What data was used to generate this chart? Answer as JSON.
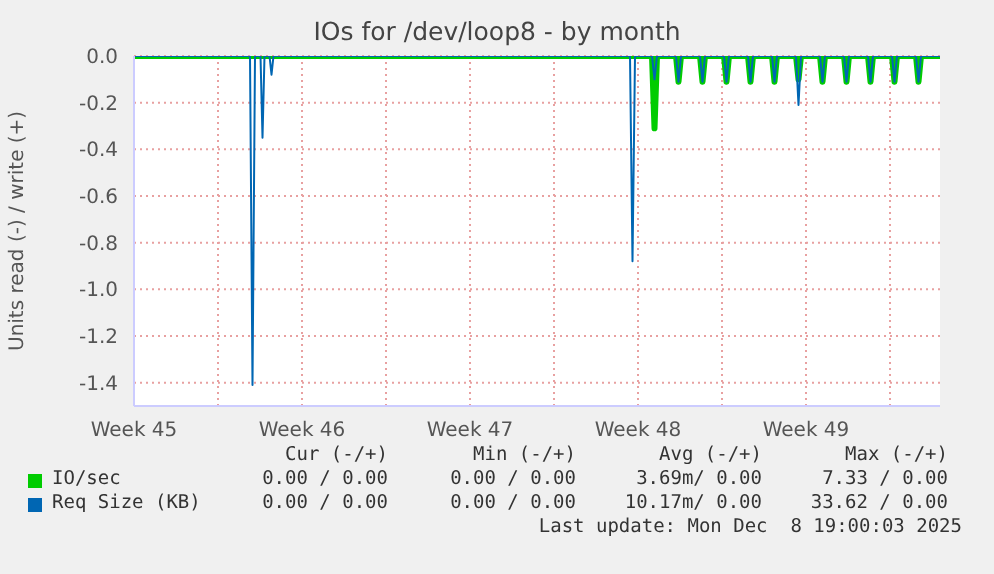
{
  "chart_data": {
    "type": "line",
    "title": "IOs for /dev/loop8 - by month",
    "ylabel": "Units read (-) / write (+)",
    "xlim": [
      "2025-11-06T12:00",
      "2025-12-10T02:00"
    ],
    "xticks": [
      {
        "value": "2025-11-06T12:00",
        "label": "Week 45"
      },
      {
        "value": "2025-11-10T00:00",
        "label": null
      },
      {
        "value": "2025-11-13T12:00",
        "label": "Week 46"
      },
      {
        "value": "2025-11-17T00:00",
        "label": null
      },
      {
        "value": "2025-11-20T12:00",
        "label": "Week 47"
      },
      {
        "value": "2025-11-24T00:00",
        "label": null
      },
      {
        "value": "2025-11-27T12:00",
        "label": "Week 48"
      },
      {
        "value": "2025-12-01T00:00",
        "label": null
      },
      {
        "value": "2025-12-04T12:00",
        "label": "Week 49"
      },
      {
        "value": "2025-12-08T00:00",
        "label": null
      }
    ],
    "ylim": [
      -1.5,
      0
    ],
    "yticks": [
      {
        "value": -1.4,
        "label": "-1.4"
      },
      {
        "value": -1.2,
        "label": "-1.2"
      },
      {
        "value": -1.0,
        "label": "-1.0"
      },
      {
        "value": -0.8,
        "label": "-0.8"
      },
      {
        "value": -0.6,
        "label": "-0.6"
      },
      {
        "value": -0.4,
        "label": "-0.4"
      },
      {
        "value": -0.2,
        "label": "-0.2"
      },
      {
        "value": 0,
        "label": "0.0"
      }
    ],
    "grid": true,
    "legend": "bottom",
    "series": [
      {
        "name": "IO/sec",
        "color": "#00cc00",
        "x": [
          "2025-11-06T12:00",
          "2025-11-28T02:00",
          "2025-11-28T04:30",
          "2025-11-28T07:00",
          "2025-11-29T02:00",
          "2025-11-29T04:30",
          "2025-11-29T07:00",
          "2025-11-30T02:00",
          "2025-11-30T04:30",
          "2025-11-30T07:00",
          "2025-12-01T02:00",
          "2025-12-01T04:30",
          "2025-12-01T07:00",
          "2025-12-02T02:00",
          "2025-12-02T04:30",
          "2025-12-02T07:00",
          "2025-12-03T02:00",
          "2025-12-03T04:30",
          "2025-12-03T07:00",
          "2025-12-04T02:00",
          "2025-12-04T04:30",
          "2025-12-04T07:00",
          "2025-12-05T02:00",
          "2025-12-05T04:30",
          "2025-12-05T07:00",
          "2025-12-06T02:00",
          "2025-12-06T04:30",
          "2025-12-06T07:00",
          "2025-12-07T02:00",
          "2025-12-07T04:30",
          "2025-12-07T07:00",
          "2025-12-08T02:00",
          "2025-12-08T04:30",
          "2025-12-08T07:00",
          "2025-12-09T02:00",
          "2025-12-09T04:30",
          "2025-12-09T07:00",
          "2025-12-10T02:00"
        ],
        "values": [
          0,
          0,
          -0.31,
          0,
          0,
          -0.11,
          0,
          0,
          -0.11,
          0,
          0,
          -0.11,
          0,
          0,
          -0.11,
          0,
          0,
          -0.11,
          0,
          0,
          -0.1,
          0,
          0,
          -0.11,
          0,
          0,
          -0.11,
          0,
          0,
          -0.11,
          0,
          0,
          -0.11,
          0,
          0,
          -0.11,
          0,
          0
        ]
      },
      {
        "name": "Req Size (KB)",
        "color": "#0066b3",
        "x": [
          "2025-11-06T12:00",
          "2025-11-11T08:00",
          "2025-11-11T10:30",
          "2025-11-11T13:00",
          "2025-11-11T18:30",
          "2025-11-11T20:30",
          "2025-11-11T22:30",
          "2025-11-12T03:30",
          "2025-11-12T05:30",
          "2025-11-12T07:30",
          "2025-11-27T04:00",
          "2025-11-27T06:30",
          "2025-11-27T09:00",
          "2025-11-28T02:00",
          "2025-11-28T04:30",
          "2025-11-28T07:00",
          "2025-11-29T02:00",
          "2025-11-29T04:30",
          "2025-11-29T07:00",
          "2025-11-30T02:00",
          "2025-11-30T04:30",
          "2025-11-30T07:00",
          "2025-12-01T02:00",
          "2025-12-01T04:30",
          "2025-12-01T07:00",
          "2025-12-02T02:00",
          "2025-12-02T04:30",
          "2025-12-02T07:00",
          "2025-12-03T02:00",
          "2025-12-03T04:30",
          "2025-12-03T07:00",
          "2025-12-04T02:00",
          "2025-12-04T04:30",
          "2025-12-04T07:00",
          "2025-12-05T02:00",
          "2025-12-05T04:30",
          "2025-12-05T07:00",
          "2025-12-06T02:00",
          "2025-12-06T04:30",
          "2025-12-06T07:00",
          "2025-12-07T02:00",
          "2025-12-07T04:30",
          "2025-12-07T07:00",
          "2025-12-08T02:00",
          "2025-12-08T04:30",
          "2025-12-08T07:00",
          "2025-12-09T02:00",
          "2025-12-09T04:30",
          "2025-12-09T07:00",
          "2025-12-10T02:00"
        ],
        "values": [
          0,
          0,
          -1.41,
          0,
          0,
          -0.35,
          0,
          0,
          -0.08,
          0,
          0,
          -0.88,
          0,
          0,
          -0.1,
          0,
          0,
          -0.11,
          0,
          0,
          -0.11,
          0,
          0,
          -0.11,
          0,
          0,
          -0.11,
          0,
          0,
          -0.11,
          0,
          0,
          -0.21,
          0,
          0,
          -0.11,
          0,
          0,
          -0.11,
          0,
          0,
          -0.11,
          0,
          0,
          -0.11,
          0,
          0,
          -0.11,
          0,
          0
        ]
      }
    ],
    "annotations": [
      "Cur (-/+)",
      "Min (-/+)",
      "Avg (-/+)",
      "Max (-/+)",
      "0.00 / 0.00",
      "0.00 / 0.00",
      "3.69m/ 0.00",
      "7.33 / 0.00",
      "0.00 / 0.00",
      "0.00 / 0.00",
      "10.17m/ 0.00",
      "33.62 / 0.00",
      "Last update: Mon Dec  8 19:00:03 2025"
    ]
  }
}
